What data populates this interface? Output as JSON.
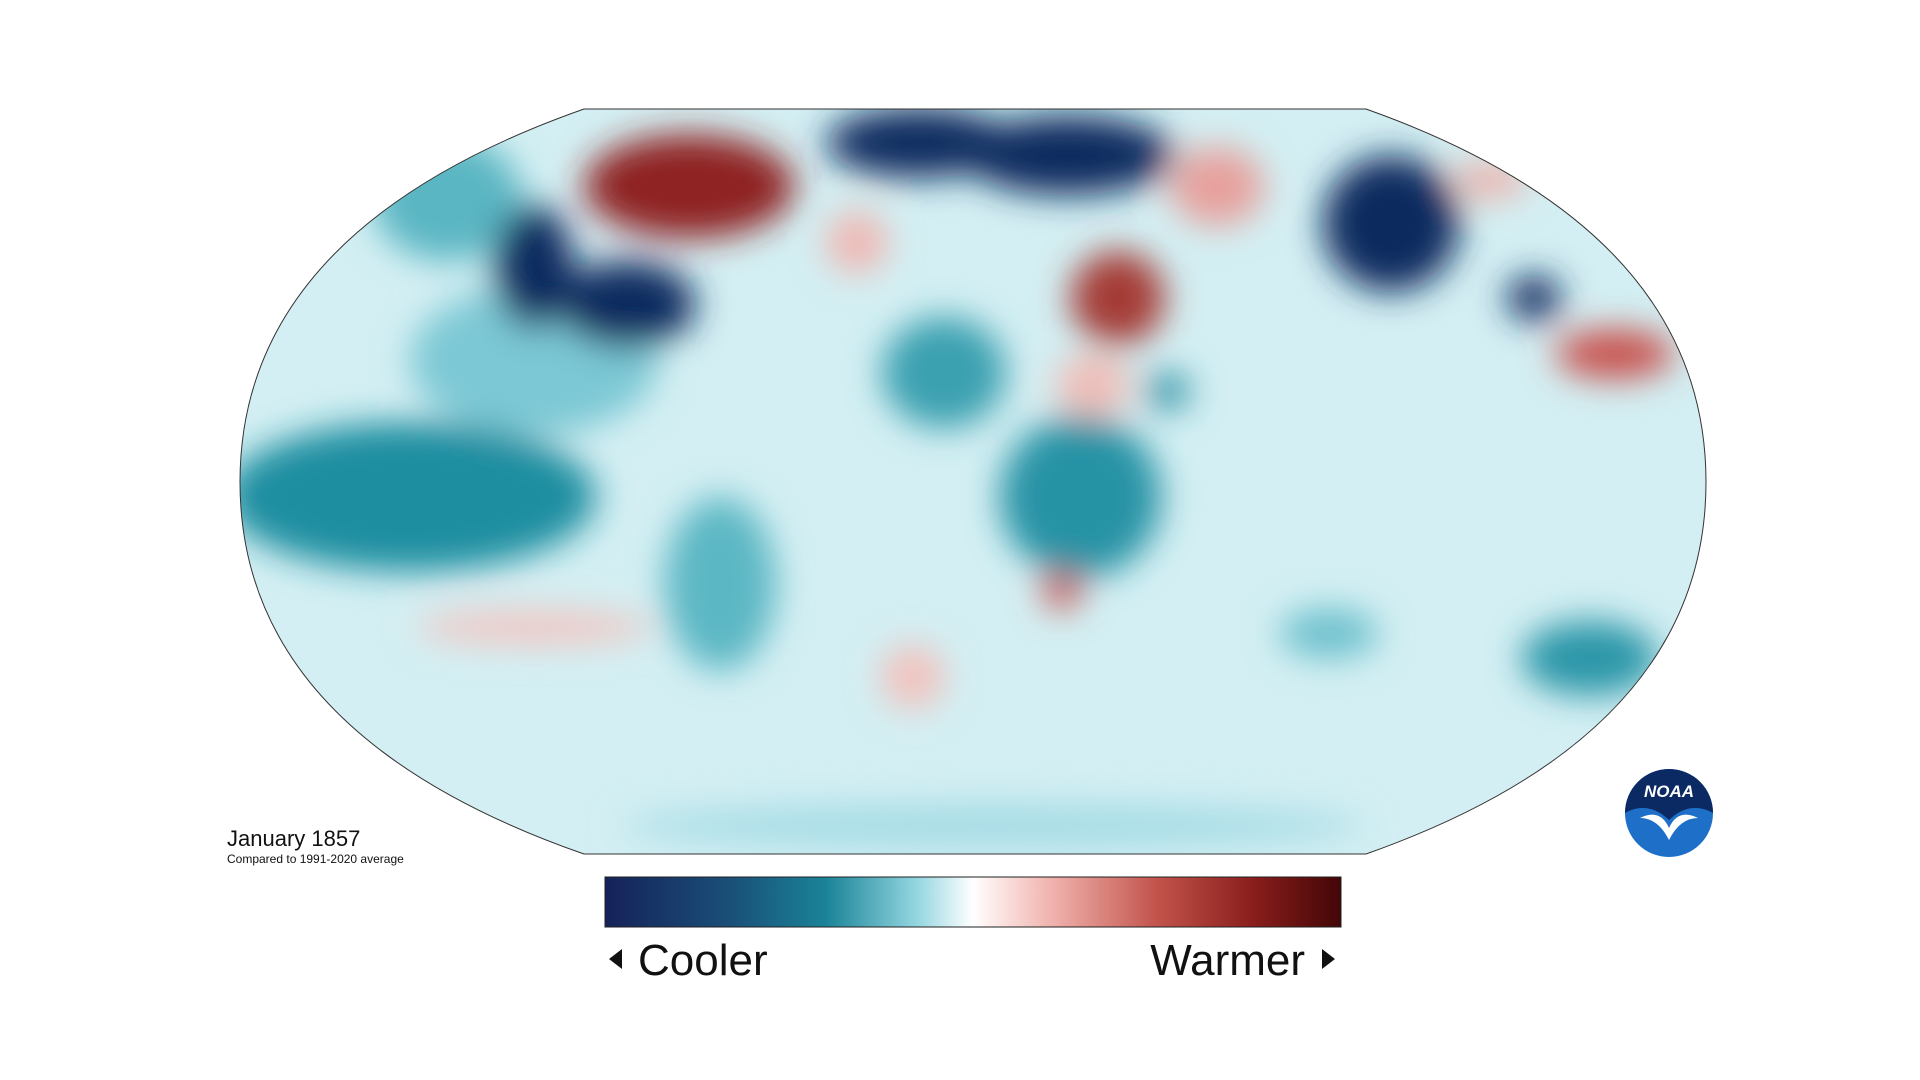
{
  "title": "January 1857",
  "subtitle": "Compared to 1991-2020 average",
  "legend": {
    "low_label": "Cooler",
    "high_label": "Warmer"
  },
  "logo": "NOAA"
}
